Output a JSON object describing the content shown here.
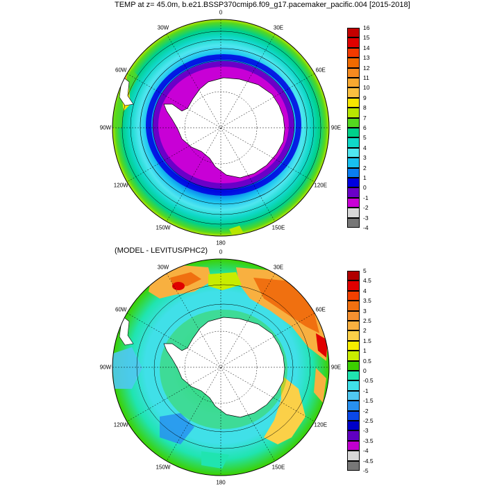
{
  "panel1": {
    "title": "TEMP at z=  45.0m, b.e21.BSSP370cmip6.f09_g17.pacemaker_pacific.004 [2015-2018]",
    "lon_labels": [
      "0",
      "30E",
      "60E",
      "90E",
      "120E",
      "150E",
      "180",
      "150W",
      "120W",
      "90W",
      "60W",
      "30W"
    ],
    "colorbar": {
      "labels": [
        "16",
        "15",
        "14",
        "13",
        "12",
        "11",
        "10",
        "9",
        "8",
        "7",
        "6",
        "5",
        "4",
        "3",
        "2",
        "1",
        "0",
        "-1",
        "-2",
        "-3",
        "-4"
      ],
      "colors": [
        "#c40000",
        "#e00000",
        "#f23a00",
        "#f06a00",
        "#f58a20",
        "#f8a830",
        "#fbc040",
        "#f6e600",
        "#b8e600",
        "#55d820",
        "#00d08a",
        "#10d8c8",
        "#50e6f0",
        "#18c0f0",
        "#0a7ef0",
        "#0000e0",
        "#6a00c8",
        "#c800d6",
        "#d8d8d8",
        "#777777"
      ]
    }
  },
  "panel2": {
    "title": "(MODEL - LEVITUS/PHC2)",
    "lon_labels": [
      "0",
      "30E",
      "60E",
      "90E",
      "120E",
      "150E",
      "180",
      "150W",
      "120W",
      "90W",
      "60W",
      "30W"
    ],
    "colorbar": {
      "labels": [
        "5",
        "4.5",
        "4",
        "3.5",
        "3",
        "2.5",
        "2",
        "1.5",
        "1",
        "0.5",
        "0",
        "-0.5",
        "-1",
        "-1.5",
        "-2",
        "-2.5",
        "-3",
        "-3.5",
        "-4",
        "-4.5",
        "-5"
      ],
      "colors": [
        "#b00000",
        "#e00000",
        "#f24000",
        "#f07010",
        "#f59030",
        "#f8b040",
        "#fbd048",
        "#f6ee00",
        "#c8ec00",
        "#3cd000",
        "#20e4b0",
        "#40e0e8",
        "#50c8f0",
        "#2890f0",
        "#0a48e8",
        "#0000c8",
        "#6000c0",
        "#c000d0",
        "#d8d8d8",
        "#777777"
      ]
    }
  }
}
